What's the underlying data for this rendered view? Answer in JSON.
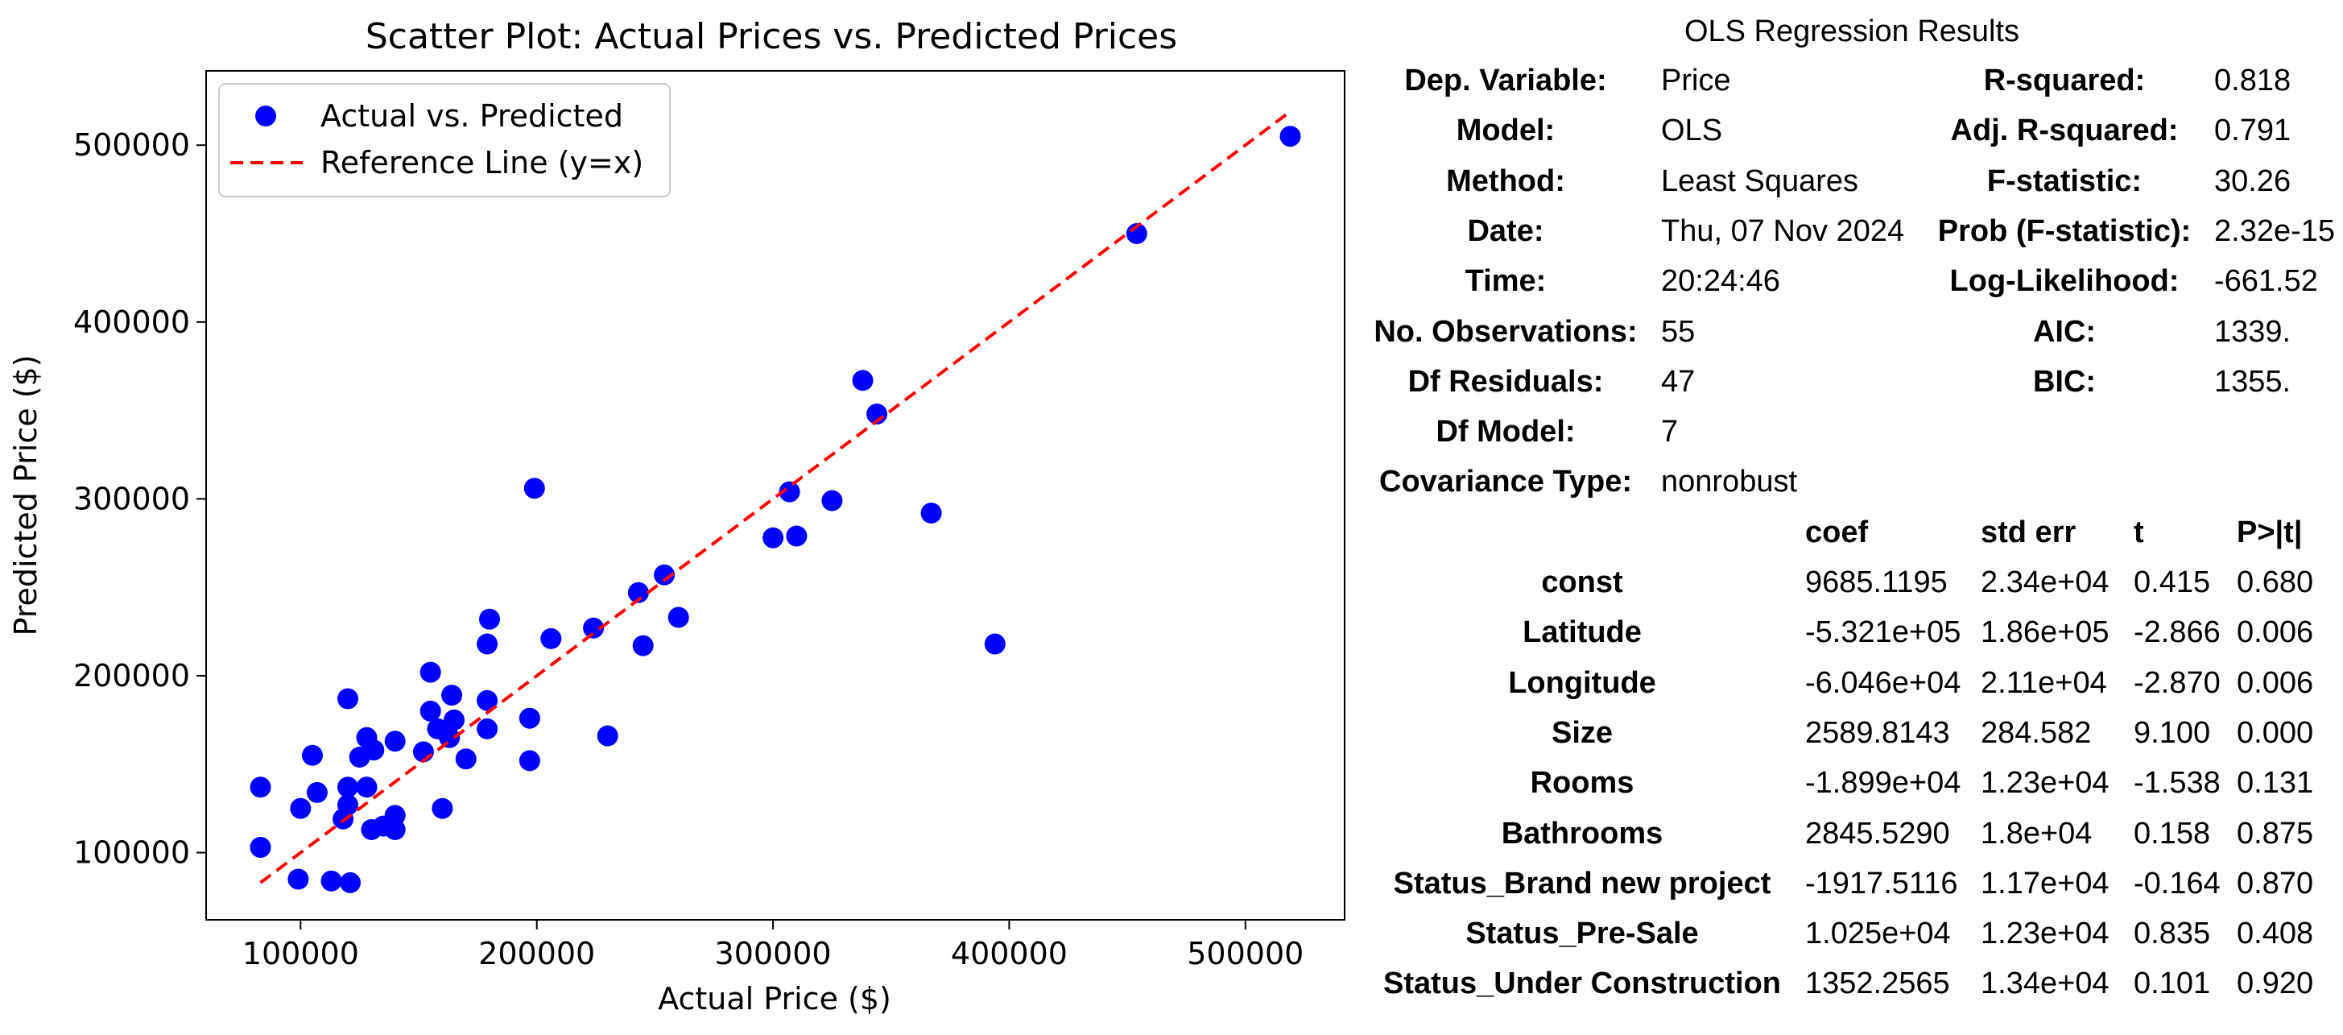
{
  "chart_data": {
    "type": "scatter",
    "title": "Scatter Plot: Actual Prices vs. Predicted Prices",
    "xlabel": "Actual Price ($)",
    "ylabel": "Predicted Price ($)",
    "xlim": [
      60000,
      542000
    ],
    "ylim": [
      62000,
      542000
    ],
    "xticks": [
      100000,
      200000,
      300000,
      400000,
      500000
    ],
    "yticks": [
      100000,
      200000,
      300000,
      400000,
      500000
    ],
    "grid": false,
    "legend": "top-left",
    "series": [
      {
        "name": "Actual vs. Predicted",
        "kind": "points",
        "color": "#0000ff",
        "points": [
          [
            83000,
            137000
          ],
          [
            83000,
            103000
          ],
          [
            99000,
            85000
          ],
          [
            100000,
            125000
          ],
          [
            105000,
            155000
          ],
          [
            107000,
            134000
          ],
          [
            113000,
            84000
          ],
          [
            118000,
            119000
          ],
          [
            120000,
            137000
          ],
          [
            120000,
            127000
          ],
          [
            120000,
            187000
          ],
          [
            121000,
            83000
          ],
          [
            125000,
            154000
          ],
          [
            128000,
            165000
          ],
          [
            128000,
            137000
          ],
          [
            130000,
            113000
          ],
          [
            131000,
            158000
          ],
          [
            135000,
            115000
          ],
          [
            140000,
            163000
          ],
          [
            140000,
            121000
          ],
          [
            140000,
            113000
          ],
          [
            152000,
            157000
          ],
          [
            155000,
            202000
          ],
          [
            155000,
            180000
          ],
          [
            158000,
            170000
          ],
          [
            160000,
            125000
          ],
          [
            163000,
            165000
          ],
          [
            164000,
            189000
          ],
          [
            165000,
            175000
          ],
          [
            170000,
            153000
          ],
          [
            179000,
            170000
          ],
          [
            179000,
            186000
          ],
          [
            179000,
            218000
          ],
          [
            180000,
            232000
          ],
          [
            197000,
            152000
          ],
          [
            197000,
            176000
          ],
          [
            199000,
            306000
          ],
          [
            206000,
            221000
          ],
          [
            224000,
            227000
          ],
          [
            230000,
            166000
          ],
          [
            243000,
            247000
          ],
          [
            245000,
            217000
          ],
          [
            254000,
            257000
          ],
          [
            260000,
            233000
          ],
          [
            300000,
            278000
          ],
          [
            307000,
            304000
          ],
          [
            310000,
            279000
          ],
          [
            325000,
            299000
          ],
          [
            338000,
            367000
          ],
          [
            344000,
            348000
          ],
          [
            367000,
            292000
          ],
          [
            394000,
            218000
          ],
          [
            454000,
            450000
          ],
          [
            519000,
            505000
          ]
        ]
      },
      {
        "name": "Reference Line (y=x)",
        "kind": "line",
        "color": "#ff0000",
        "dash": true,
        "points": [
          [
            83000,
            83000
          ],
          [
            519000,
            519000
          ]
        ]
      }
    ]
  },
  "ols": {
    "title": "OLS Regression Results",
    "summary_rows": [
      {
        "l1": "Dep. Variable:",
        "v1": "Price",
        "l2": "R-squared:",
        "v2": "0.818"
      },
      {
        "l1": "Model:",
        "v1": "OLS",
        "l2": "Adj. R-squared:",
        "v2": "0.791"
      },
      {
        "l1": "Method:",
        "v1": "Least Squares",
        "l2": "F-statistic:",
        "v2": "30.26"
      },
      {
        "l1": "Date:",
        "v1": "Thu, 07 Nov 2024",
        "l2": "Prob (F-statistic):",
        "v2": "2.32e-15"
      },
      {
        "l1": "Time:",
        "v1": "20:24:46",
        "l2": "Log-Likelihood:",
        "v2": "-661.52"
      },
      {
        "l1": "No. Observations:",
        "v1": "55",
        "l2": "AIC:",
        "v2": "1339."
      },
      {
        "l1": "Df Residuals:",
        "v1": "47",
        "l2": "BIC:",
        "v2": "1355."
      },
      {
        "l1": "Df Model:",
        "v1": "7",
        "l2": "",
        "v2": ""
      },
      {
        "l1": "Covariance Type:",
        "v1": "nonrobust",
        "l2": "",
        "v2": ""
      }
    ],
    "param_headers": [
      "coef",
      "std err",
      "t",
      "P>|t|"
    ],
    "params": [
      {
        "name": "const",
        "coef": "9685.1195",
        "se": "2.34e+04",
        "t": "0.415",
        "p": "0.680"
      },
      {
        "name": "Latitude",
        "coef": "-5.321e+05",
        "se": "1.86e+05",
        "t": "-2.866",
        "p": "0.006"
      },
      {
        "name": "Longitude",
        "coef": "-6.046e+04",
        "se": "2.11e+04",
        "t": "-2.870",
        "p": "0.006"
      },
      {
        "name": "Size",
        "coef": "2589.8143",
        "se": "284.582",
        "t": "9.100",
        "p": "0.000"
      },
      {
        "name": "Rooms",
        "coef": "-1.899e+04",
        "se": "1.23e+04",
        "t": "-1.538",
        "p": "0.131"
      },
      {
        "name": "Bathrooms",
        "coef": "2845.5290",
        "se": "1.8e+04",
        "t": "0.158",
        "p": "0.875"
      },
      {
        "name": "Status_Brand new project",
        "coef": "-1917.5116",
        "se": "1.17e+04",
        "t": "-0.164",
        "p": "0.870"
      },
      {
        "name": "Status_Pre-Sale",
        "coef": "1.025e+04",
        "se": "1.23e+04",
        "t": "0.835",
        "p": "0.408"
      },
      {
        "name": "Status_Under Construction",
        "coef": "1352.2565",
        "se": "1.34e+04",
        "t": "0.101",
        "p": "0.920"
      }
    ]
  }
}
